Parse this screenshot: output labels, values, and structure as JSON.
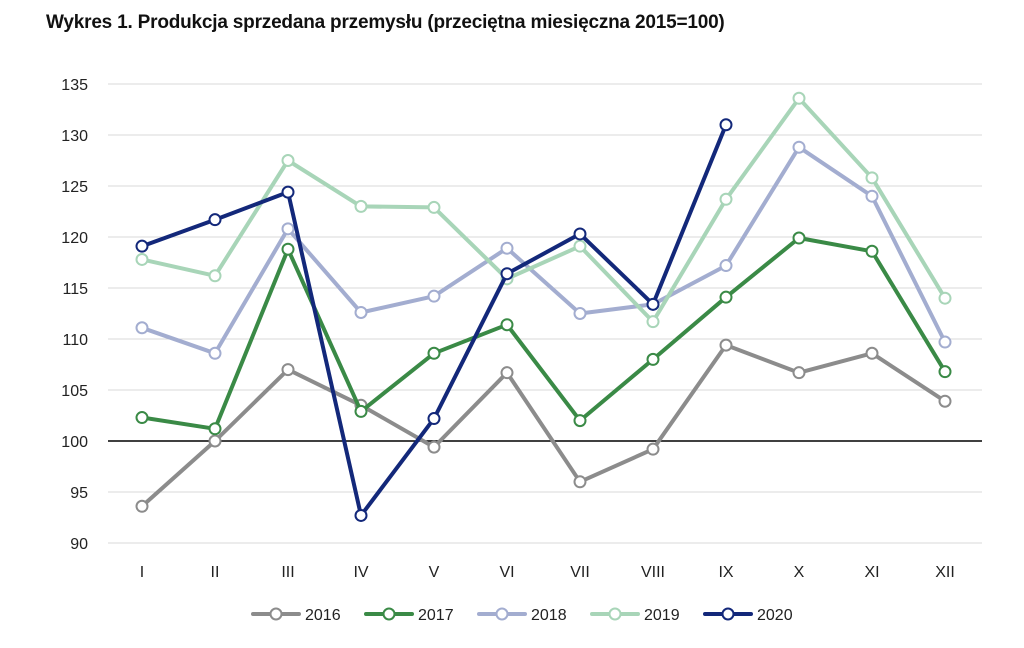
{
  "title": "Wykres 1. Produkcja sprzedana przemysłu (przeciętna miesięczna 2015=100)",
  "chart_data": {
    "type": "line",
    "title": "Wykres 1. Produkcja sprzedana przemysłu (przeciętna miesięczna 2015=100)",
    "xlabel": "",
    "ylabel": "",
    "categories": [
      "I",
      "II",
      "III",
      "IV",
      "V",
      "VI",
      "VII",
      "VIII",
      "IX",
      "X",
      "XI",
      "XII"
    ],
    "ylim": [
      90,
      135
    ],
    "yticks": [
      90,
      95,
      100,
      105,
      110,
      115,
      120,
      125,
      130,
      135
    ],
    "reference_line": 100,
    "grid": true,
    "legend_position": "bottom",
    "series": [
      {
        "name": "2016",
        "color": "#8c8c8c",
        "values": [
          93.6,
          100.0,
          107.0,
          103.5,
          99.4,
          106.7,
          96.0,
          99.2,
          109.4,
          106.7,
          108.6,
          103.9
        ]
      },
      {
        "name": "2017",
        "color": "#3a8a46",
        "values": [
          102.3,
          101.2,
          118.8,
          102.9,
          108.6,
          111.4,
          102.0,
          108.0,
          114.1,
          119.9,
          118.6,
          106.8
        ]
      },
      {
        "name": "2018",
        "color": "#a3add0",
        "values": [
          111.1,
          108.6,
          120.8,
          112.6,
          114.2,
          118.9,
          112.5,
          113.4,
          117.2,
          128.8,
          124.0,
          109.7
        ]
      },
      {
        "name": "2019",
        "color": "#a8d5b8",
        "values": [
          117.8,
          116.2,
          127.5,
          123.0,
          122.9,
          115.9,
          119.1,
          111.7,
          123.7,
          133.6,
          125.8,
          114.0
        ]
      },
      {
        "name": "2020",
        "color": "#13287a",
        "values": [
          119.1,
          121.7,
          124.4,
          92.7,
          102.2,
          116.4,
          120.3,
          113.4,
          131.0,
          null,
          null,
          null
        ]
      }
    ]
  }
}
